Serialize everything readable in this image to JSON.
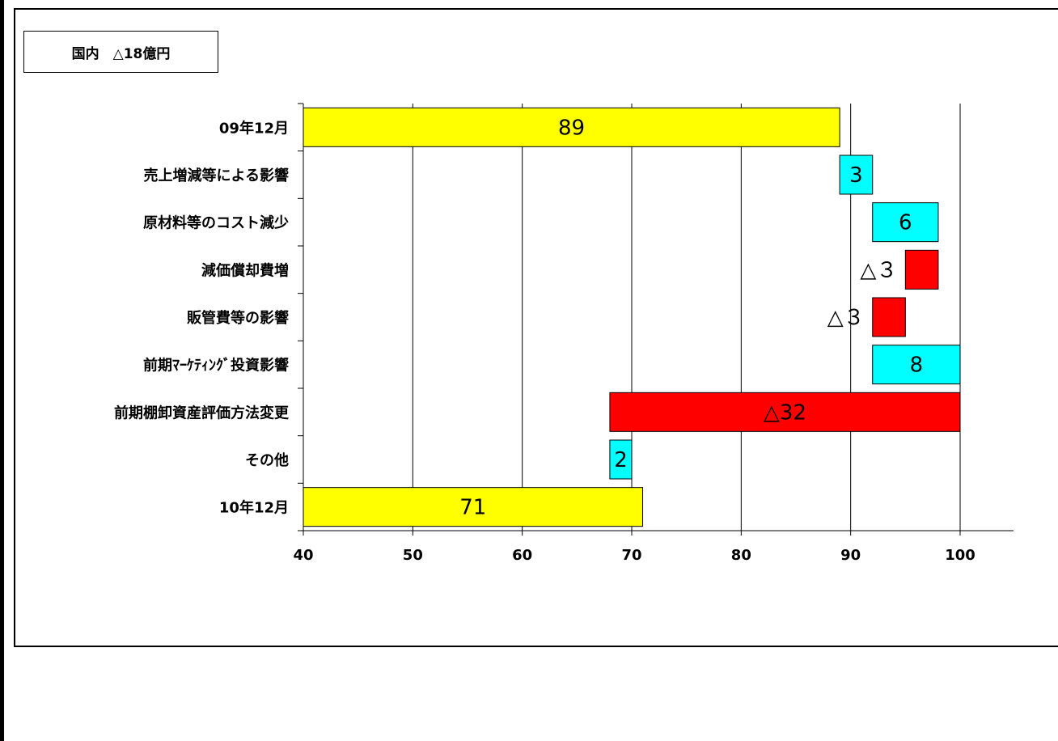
{
  "title": "国内　△18億円",
  "chart_data": {
    "type": "bar",
    "subtype": "waterfall-horizontal",
    "categories": [
      "09年12月",
      "売上増減等による影響",
      "原材料等のコスト減少",
      "減価償却費増",
      "販管費等の影響",
      "前期ﾏｰｹﾃｨﾝｸﾞ投資影響",
      "前期棚卸資産評価方法変更",
      "その他",
      "10年12月"
    ],
    "values": [
      89,
      3,
      6,
      -3,
      -3,
      8,
      -32,
      2,
      71
    ],
    "value_labels": [
      "89",
      "3",
      "6",
      "△３",
      "△３",
      "8",
      "△32",
      "2",
      "71"
    ],
    "bar_kinds": [
      "total",
      "increase",
      "increase",
      "decrease",
      "decrease",
      "increase",
      "decrease",
      "increase",
      "total"
    ],
    "xlim": [
      40,
      105
    ],
    "xticks": [
      40,
      50,
      60,
      70,
      80,
      90,
      100
    ],
    "xlabel": "",
    "ylabel": "",
    "grid": "vertical",
    "colors": {
      "total": "#ffff00",
      "increase": "#00ffff",
      "decrease": "#ff0000",
      "grid": "#000000",
      "decrease_label": "#ffffff"
    }
  }
}
